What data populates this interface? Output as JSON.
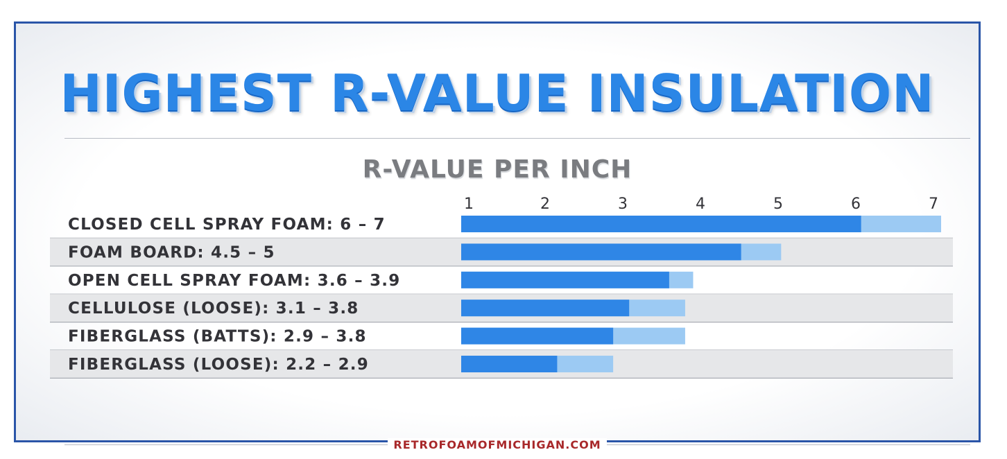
{
  "chart_data": {
    "type": "bar",
    "title": "HIGHEST R-VALUE INSULATION",
    "subtitle": "R-VALUE PER INCH",
    "xlim": [
      1,
      7
    ],
    "xticks": [
      1,
      2,
      3,
      4,
      5,
      6,
      7
    ],
    "grid": false,
    "categories": [
      {
        "label": "CLOSED CELL SPRAY FOAM: 6 – 7",
        "low": 6,
        "high": 7
      },
      {
        "label": "FOAM BOARD: 4.5 – 5",
        "low": 4.5,
        "high": 5
      },
      {
        "label": "OPEN CELL SPRAY FOAM: 3.6 – 3.9",
        "low": 3.6,
        "high": 3.9
      },
      {
        "label": "CELLULOSE (LOOSE): 3.1 – 3.8",
        "low": 3.1,
        "high": 3.8
      },
      {
        "label": "FIBERGLASS (BATTS): 2.9 – 3.8",
        "low": 2.9,
        "high": 3.8
      },
      {
        "label": "FIBERGLASS (LOOSE): 2.2 – 2.9",
        "low": 2.2,
        "high": 2.9
      }
    ],
    "colors": {
      "low": "#2f86e6",
      "range": "#9ccaf3",
      "row_shade": "#e6e7e9"
    },
    "source": "RETROFOAMOFMICHIGAN.COM"
  }
}
